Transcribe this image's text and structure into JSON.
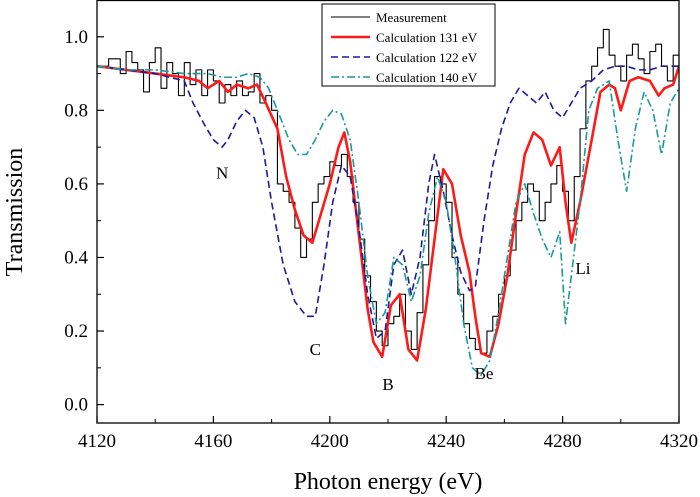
{
  "chart_data": {
    "type": "line",
    "xlabel": "Photon energy (eV)",
    "ylabel": "Transmission",
    "xlim": [
      4120,
      4320
    ],
    "ylim": [
      -0.05,
      1.1
    ],
    "xticks": [
      4120,
      4160,
      4200,
      4240,
      4280,
      4320
    ],
    "xtick_labels": [
      "4120",
      "4160",
      "4200",
      "4240",
      "4280",
      "4320"
    ],
    "yticks": [
      0.0,
      0.2,
      0.4,
      0.6,
      0.8,
      1.0
    ],
    "ytick_labels": [
      "0.0",
      "0.2",
      "0.4",
      "0.6",
      "0.8",
      "1.0"
    ],
    "grid": false,
    "legend_position": "top-center",
    "annotations": [
      {
        "text": "N",
        "x": 4163,
        "y": 0.615
      },
      {
        "text": "C",
        "x": 4195,
        "y": 0.135
      },
      {
        "text": "B",
        "x": 4220,
        "y": 0.04
      },
      {
        "text": "Be",
        "x": 4253,
        "y": 0.07
      },
      {
        "text": "Li",
        "x": 4287,
        "y": 0.355
      }
    ],
    "series": [
      {
        "name": "Measurement",
        "color": "#000000",
        "style": "step",
        "x": [
          4120,
          4124,
          4128,
          4130,
          4132,
          4134,
          4136,
          4138,
          4140,
          4142,
          4144,
          4146,
          4148,
          4150,
          4152,
          4154,
          4156,
          4158,
          4160,
          4162,
          4164,
          4166,
          4168,
          4170,
          4172,
          4174,
          4176,
          4178,
          4180,
          4182,
          4184,
          4186,
          4188,
          4190,
          4192,
          4194,
          4196,
          4198,
          4200,
          4202,
          4204,
          4206,
          4208,
          4210,
          4212,
          4214,
          4216,
          4218,
          4220,
          4222,
          4224,
          4226,
          4228,
          4230,
          4232,
          4234,
          4236,
          4238,
          4240,
          4242,
          4244,
          4246,
          4248,
          4250,
          4252,
          4254,
          4256,
          4258,
          4260,
          4262,
          4264,
          4266,
          4268,
          4270,
          4272,
          4274,
          4276,
          4278,
          4280,
          4282,
          4284,
          4286,
          4288,
          4290,
          4292,
          4294,
          4296,
          4298,
          4300,
          4302,
          4304,
          4306,
          4308,
          4310,
          4312,
          4314,
          4316,
          4318,
          4320
        ],
        "y": [
          0.92,
          0.94,
          0.9,
          0.96,
          0.93,
          0.91,
          0.85,
          0.93,
          0.97,
          0.86,
          0.93,
          0.9,
          0.84,
          0.93,
          0.87,
          0.91,
          0.84,
          0.91,
          0.88,
          0.82,
          0.87,
          0.84,
          0.88,
          0.84,
          0.85,
          0.9,
          0.82,
          0.84,
          0.8,
          0.6,
          0.58,
          0.55,
          0.48,
          0.4,
          0.45,
          0.55,
          0.6,
          0.62,
          0.66,
          0.65,
          0.68,
          0.62,
          0.55,
          0.45,
          0.35,
          0.28,
          0.2,
          0.16,
          0.22,
          0.24,
          0.3,
          0.2,
          0.15,
          0.25,
          0.38,
          0.5,
          0.62,
          0.6,
          0.55,
          0.4,
          0.3,
          0.22,
          0.18,
          0.15,
          0.14,
          0.2,
          0.24,
          0.3,
          0.35,
          0.42,
          0.5,
          0.55,
          0.6,
          0.58,
          0.5,
          0.55,
          0.6,
          0.65,
          0.58,
          0.5,
          0.62,
          0.75,
          0.88,
          0.92,
          0.97,
          1.02,
          0.95,
          0.92,
          0.88,
          0.95,
          0.98,
          0.94,
          0.9,
          0.96,
          0.98,
          0.92,
          0.88,
          0.95,
          0.94
        ]
      },
      {
        "name": "Calculation 131 eV",
        "color": "#ff1a1a",
        "style": "solid",
        "x": [
          4120,
          4130,
          4140,
          4150,
          4155,
          4158,
          4162,
          4165,
          4168,
          4172,
          4175,
          4178,
          4182,
          4185,
          4188,
          4191,
          4194,
          4197,
          4200,
          4203,
          4205,
          4207,
          4210,
          4213,
          4215,
          4218,
          4221,
          4224,
          4227,
          4230,
          4233,
          4236,
          4239,
          4242,
          4245,
          4248,
          4250,
          4252,
          4255,
          4258,
          4261,
          4264,
          4267,
          4270,
          4273,
          4276,
          4279,
          4281,
          4283,
          4286,
          4290,
          4293,
          4296,
          4298,
          4300,
          4303,
          4306,
          4310,
          4313,
          4315,
          4318,
          4320
        ],
        "y": [
          0.92,
          0.91,
          0.9,
          0.89,
          0.88,
          0.86,
          0.88,
          0.85,
          0.87,
          0.86,
          0.87,
          0.82,
          0.75,
          0.62,
          0.53,
          0.46,
          0.44,
          0.52,
          0.6,
          0.7,
          0.74,
          0.66,
          0.46,
          0.26,
          0.17,
          0.13,
          0.27,
          0.3,
          0.15,
          0.12,
          0.26,
          0.45,
          0.64,
          0.6,
          0.46,
          0.36,
          0.24,
          0.14,
          0.13,
          0.22,
          0.35,
          0.52,
          0.68,
          0.74,
          0.72,
          0.65,
          0.7,
          0.55,
          0.44,
          0.55,
          0.72,
          0.85,
          0.87,
          0.86,
          0.8,
          0.88,
          0.89,
          0.88,
          0.84,
          0.86,
          0.87,
          0.92
        ]
      },
      {
        "name": "Calculation 122 eV",
        "color": "#1a1aa0",
        "style": "dashed",
        "x": [
          4120,
          4130,
          4140,
          4150,
          4153,
          4157,
          4160,
          4163,
          4165,
          4168,
          4171,
          4174,
          4177,
          4180,
          4184,
          4188,
          4192,
          4195,
          4198,
          4201,
          4204,
          4207,
          4210,
          4213,
          4216,
          4219,
          4222,
          4225,
          4228,
          4231,
          4234,
          4236,
          4239,
          4242,
          4245,
          4248,
          4250,
          4253,
          4256,
          4259,
          4262,
          4265,
          4268,
          4271,
          4274,
          4277,
          4280,
          4283,
          4286,
          4290,
          4294,
          4298,
          4302,
          4306,
          4310,
          4314,
          4318,
          4320
        ],
        "y": [
          0.92,
          0.91,
          0.9,
          0.88,
          0.82,
          0.76,
          0.72,
          0.7,
          0.72,
          0.77,
          0.8,
          0.78,
          0.7,
          0.55,
          0.38,
          0.28,
          0.24,
          0.24,
          0.38,
          0.55,
          0.65,
          0.62,
          0.48,
          0.3,
          0.18,
          0.2,
          0.38,
          0.42,
          0.3,
          0.4,
          0.6,
          0.68,
          0.58,
          0.46,
          0.36,
          0.31,
          0.32,
          0.5,
          0.65,
          0.75,
          0.82,
          0.86,
          0.84,
          0.82,
          0.85,
          0.8,
          0.78,
          0.82,
          0.86,
          0.88,
          0.91,
          0.92,
          0.92,
          0.91,
          0.91,
          0.92,
          0.92,
          0.92
        ]
      },
      {
        "name": "Calculation 140 eV",
        "color": "#1a9a9a",
        "style": "dashdot",
        "x": [
          4120,
          4130,
          4140,
          4150,
          4158,
          4163,
          4168,
          4172,
          4176,
          4179,
          4182,
          4186,
          4189,
          4192,
          4195,
          4198,
          4201,
          4204,
          4207,
          4210,
          4213,
          4216,
          4219,
          4222,
          4225,
          4228,
          4231,
          4234,
          4237,
          4240,
          4243,
          4246,
          4249,
          4252,
          4255,
          4258,
          4261,
          4264,
          4267,
          4270,
          4273,
          4276,
          4279,
          4281,
          4283,
          4286,
          4289,
          4292,
          4296,
          4299,
          4302,
          4305,
          4308,
          4311,
          4314,
          4317,
          4320
        ],
        "y": [
          0.92,
          0.91,
          0.91,
          0.9,
          0.9,
          0.89,
          0.89,
          0.9,
          0.89,
          0.86,
          0.8,
          0.72,
          0.68,
          0.68,
          0.72,
          0.77,
          0.8,
          0.79,
          0.72,
          0.55,
          0.35,
          0.22,
          0.25,
          0.4,
          0.38,
          0.28,
          0.35,
          0.52,
          0.62,
          0.55,
          0.4,
          0.22,
          0.1,
          0.08,
          0.12,
          0.25,
          0.4,
          0.55,
          0.6,
          0.52,
          0.45,
          0.4,
          0.47,
          0.22,
          0.35,
          0.55,
          0.8,
          0.86,
          0.88,
          0.72,
          0.58,
          0.75,
          0.85,
          0.8,
          0.68,
          0.82,
          0.86
        ]
      }
    ]
  }
}
